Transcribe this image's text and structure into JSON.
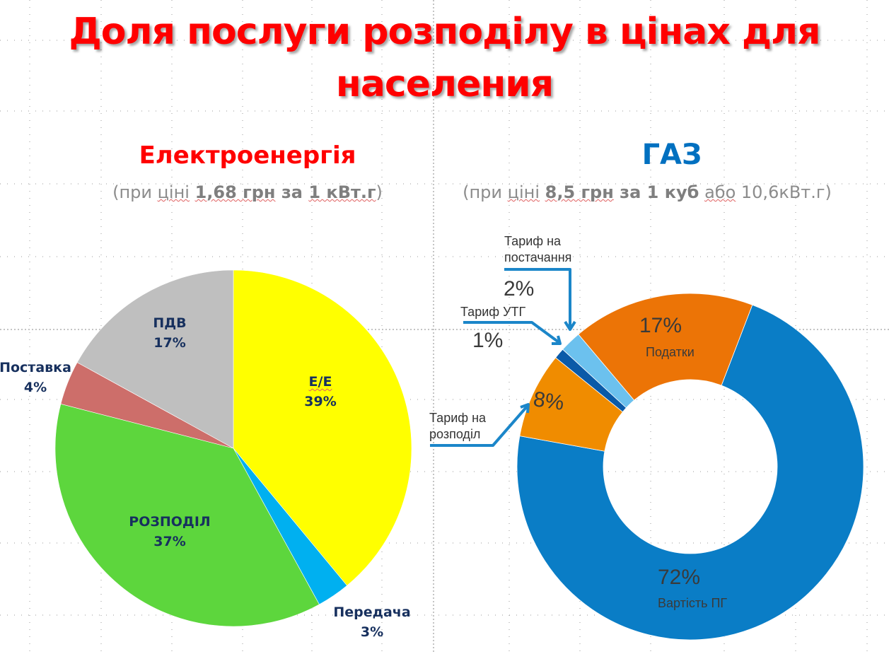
{
  "title": "Доля послуги розподілу в цінах для населения",
  "title_lines": [
    "Доля послуги розподілу в цінах для",
    "населения"
  ],
  "colors": {
    "title": "#ff0000",
    "electricity_title": "#ff0000",
    "gas_title": "#0070c0",
    "price_note": "#8c8c8c",
    "pie_label": "#17305e"
  },
  "electricity": {
    "title": "Електроенергія",
    "price_note": {
      "open": "(при ",
      "word1": "ціні",
      "price": "1,68 грн",
      "mid": " за ",
      "unit": "1 кВт.г",
      "close": ")"
    },
    "price_note_text": "(при ціні 1,68 грн за 1 кВт.г)"
  },
  "gas": {
    "title": "ГАЗ",
    "price_note": {
      "open": "(при ",
      "word1": "ціні",
      "price": "8,5 грн",
      "mid": " за ",
      "unit": "1 куб",
      "or": "або",
      "alt": " 10,6кВт.г)"
    },
    "price_note_text": "(при ціні 8,5 грн за 1 куб або 10,6кВт.г)"
  },
  "chart_data": [
    {
      "type": "pie",
      "title": "Електроенергія",
      "subtitle": "(при ціні 1,68 грн за 1 кВт.г)",
      "categories": [
        "Е/Е",
        "Передача",
        "РОЗПОДІЛ",
        "Поставка",
        "ПДВ"
      ],
      "values": [
        39,
        3,
        37,
        4,
        17
      ],
      "labels": [
        "Е/Е 39%",
        "Передача 3%",
        "РОЗПОДІЛ 37%",
        "Поставка 4%",
        "ПДВ 17%"
      ],
      "colors": [
        "#ffff00",
        "#00b0f0",
        "#5dd63d",
        "#cd6e6a",
        "#bfbfbf"
      ],
      "start_angle_deg": 0,
      "direction": "clockwise",
      "legend": "none (data labels)"
    },
    {
      "type": "pie",
      "subtype": "donut",
      "title": "ГАЗ",
      "subtitle": "(при ціні 8,5 грн за 1 куб або 10,6кВт.г)",
      "categories": [
        "Вартість ПГ",
        "Тариф на розподіл",
        "Тариф УТГ",
        "Тариф на постачання",
        "Податки"
      ],
      "values": [
        72,
        8,
        1,
        2,
        17
      ],
      "labels": [
        "72% Вартість ПГ",
        "8% Тариф на розподіл",
        "1% Тариф УТГ",
        "2% Тариф на постачання",
        "17% Податки"
      ],
      "colors": [
        "#0a7dc6",
        "#f08c00",
        "#0a5aa8",
        "#6cc1ee",
        "#ec7406"
      ],
      "start_angle_deg": 21,
      "direction": "clockwise",
      "legend": "none (data labels with callout arrows)"
    }
  ],
  "pie_labels": {
    "ee": {
      "name": "Е/Е",
      "pct": "39%"
    },
    "transfer": {
      "name": "Передача",
      "pct": "3%"
    },
    "distribution": {
      "name": "РОЗПОДІЛ",
      "pct": "37%"
    },
    "supply": {
      "name": "Поставка",
      "pct": "4%"
    },
    "vat": {
      "name": "ПДВ",
      "pct": "17%"
    }
  },
  "donut_labels": {
    "gas_cost": {
      "name": "Вартість ПГ",
      "pct": "72%"
    },
    "taxes": {
      "name": "Податки",
      "pct": "17%"
    },
    "distribution_tariff": {
      "name_line1": "Тариф на",
      "name_line2": "розподіл",
      "pct": "8%"
    },
    "utg_tariff": {
      "name": "Тариф УТГ",
      "pct": "1%"
    },
    "supply_tariff": {
      "name_line1": "Тариф на",
      "name_line2": "постачання",
      "pct": "2%"
    }
  }
}
